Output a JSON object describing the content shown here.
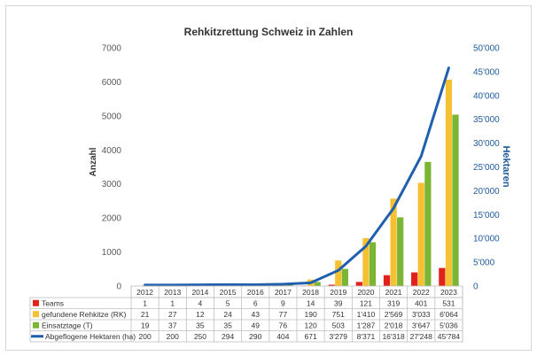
{
  "chart_data": {
    "type": "bar",
    "title": "Rehkitzrettung Schweiz in Zahlen",
    "ylabel": "Anzahl",
    "y2label": "Hektaren",
    "ylim": [
      0,
      7000
    ],
    "y2lim": [
      0,
      50000
    ],
    "yticks": [
      "0",
      "1000",
      "2000",
      "3000",
      "4000",
      "5000",
      "6000",
      "7000"
    ],
    "y2ticks": [
      "0",
      "5'000",
      "10'000",
      "15'000",
      "20'000",
      "25'000",
      "30'000",
      "35'000",
      "40'000",
      "45'000",
      "50'000"
    ],
    "grid": false,
    "categories": [
      "2012",
      "2013",
      "2014",
      "2015",
      "2016",
      "2017",
      "2018",
      "2019",
      "2020",
      "2021",
      "2022",
      "2023"
    ],
    "series": [
      {
        "name": "Teams",
        "type": "bar",
        "color": "#e0211c",
        "values": [
          1,
          1,
          4,
          5,
          6,
          9,
          14,
          39,
          121,
          319,
          401,
          531
        ],
        "labels": [
          "1",
          "1",
          "4",
          "5",
          "6",
          "9",
          "14",
          "39",
          "121",
          "319",
          "401",
          "531"
        ]
      },
      {
        "name": "gefundene Rehkitze (RK)",
        "type": "bar",
        "color": "#f5c133",
        "values": [
          21,
          27,
          12,
          24,
          43,
          77,
          190,
          751,
          1410,
          2569,
          3033,
          6064
        ],
        "labels": [
          "21",
          "27",
          "12",
          "24",
          "43",
          "77",
          "190",
          "751",
          "1'410",
          "2'569",
          "3'033",
          "6'064"
        ]
      },
      {
        "name": "Einsatztage (T)",
        "type": "bar",
        "color": "#7bb534",
        "values": [
          19,
          37,
          35,
          35,
          49,
          76,
          120,
          503,
          1287,
          2018,
          3647,
          5036
        ],
        "labels": [
          "19",
          "37",
          "35",
          "35",
          "49",
          "76",
          "120",
          "503",
          "1'287",
          "2'018",
          "3'647",
          "5'036"
        ]
      },
      {
        "name": "Abgeflogene Hektaren (ha)",
        "type": "line",
        "axis": "right",
        "color": "#1f5fad",
        "values": [
          200,
          200,
          250,
          294,
          290,
          404,
          671,
          3279,
          8371,
          16318,
          27248,
          45784
        ],
        "labels": [
          "200",
          "200",
          "250",
          "294",
          "290",
          "404",
          "671",
          "3'279",
          "8'371",
          "16'318",
          "27'248",
          "45'784"
        ]
      }
    ]
  }
}
